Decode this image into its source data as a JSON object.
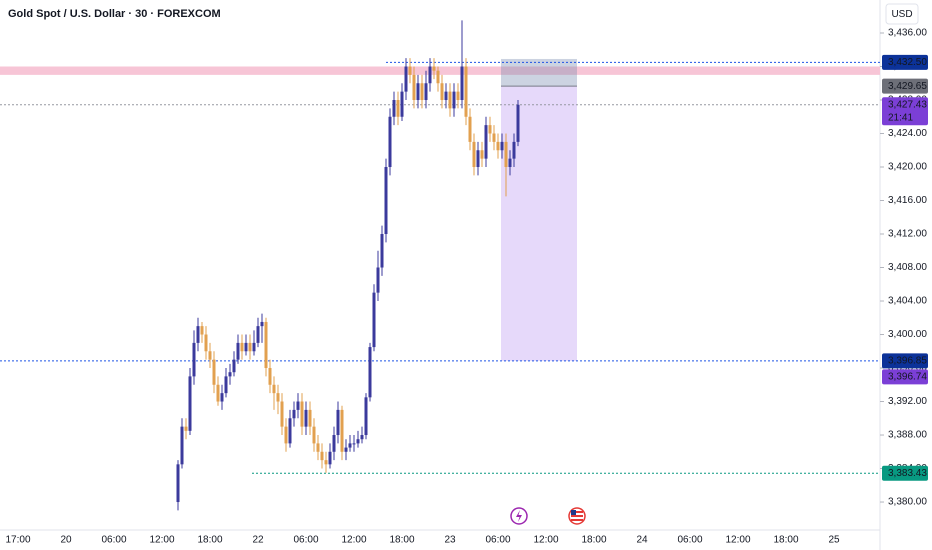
{
  "chart_data": {
    "type": "candlestick",
    "title": "Gold Spot / U.S. Dollar · 30 · FOREXCOM",
    "currency": "USD",
    "open": [
      3380,
      3384.5,
      3389,
      3388.5,
      3395,
      3399,
      3401,
      3400,
      3398,
      3397,
      3394,
      3392,
      3393,
      3395,
      3395.5,
      3397,
      3399,
      3398,
      3399,
      3398,
      3399,
      3401,
      3401.5,
      3396,
      3394,
      3393,
      3392,
      3389,
      3387,
      3390,
      3391,
      3392,
      3389,
      3391,
      3389,
      3387,
      3386,
      3385,
      3384.5,
      3386,
      3388,
      3391,
      3386,
      3386.5,
      3387,
      3387,
      3387.5,
      3388,
      3392.5,
      3398.5,
      3405,
      3408,
      3412,
      3420,
      3426,
      3428,
      3426,
      3429,
      3432,
      3431,
      3428,
      3430,
      3428,
      3430,
      3432,
      3431.5,
      3430,
      3428,
      3429,
      3427,
      3429,
      3428,
      3432,
      3426,
      3423,
      3420,
      3422,
      3421,
      3425,
      3424,
      3423,
      3422,
      3423,
      3420,
      3421,
      3423
    ],
    "high": [
      3385,
      3390,
      3390,
      3396,
      3400.5,
      3402,
      3401.5,
      3401,
      3399,
      3398,
      3395,
      3394,
      3396,
      3396.5,
      3398,
      3400,
      3400,
      3400,
      3400,
      3400.5,
      3402,
      3402.5,
      3402,
      3397,
      3395,
      3394,
      3393,
      3390,
      3391,
      3392,
      3393,
      3393,
      3392,
      3392,
      3390,
      3388,
      3387,
      3386,
      3387,
      3389,
      3392,
      3391.5,
      3387.5,
      3388,
      3388,
      3388.5,
      3389,
      3393,
      3399,
      3406,
      3410,
      3413,
      3421,
      3427,
      3429,
      3429,
      3430,
      3433,
      3433,
      3432,
      3431,
      3431,
      3431.5,
      3433,
      3433,
      3432,
      3431,
      3430,
      3430,
      3430,
      3430,
      3437.5,
      3433,
      3427,
      3424,
      3423,
      3423,
      3426,
      3426,
      3425,
      3424,
      3424,
      3424,
      3422,
      3424,
      3428
    ],
    "low": [
      3379,
      3384,
      3387.5,
      3388,
      3394,
      3398,
      3399,
      3397,
      3396,
      3393,
      3391.5,
      3391,
      3392.5,
      3394,
      3395,
      3396.5,
      3397,
      3397.5,
      3397,
      3397.5,
      3398.5,
      3399,
      3395,
      3393,
      3391,
      3390.5,
      3388,
      3386,
      3386.5,
      3389,
      3390,
      3388,
      3388,
      3388,
      3386,
      3385,
      3384,
      3383.5,
      3384,
      3385,
      3387,
      3385,
      3385,
      3386,
      3386,
      3386.5,
      3387,
      3387.5,
      3392,
      3398,
      3404,
      3407,
      3411,
      3419,
      3425,
      3425,
      3425.5,
      3428,
      3430,
      3427,
      3427,
      3427,
      3427,
      3429,
      3430.5,
      3429,
      3427,
      3427,
      3426,
      3426,
      3427,
      3427,
      3425,
      3422,
      3419,
      3419,
      3420,
      3420,
      3423,
      3422,
      3421,
      3421,
      3416.5,
      3419,
      3420,
      3422.5
    ],
    "close": [
      3384.5,
      3389,
      3388.5,
      3395,
      3399,
      3401,
      3400,
      3398,
      3397,
      3394,
      3392,
      3393,
      3395,
      3395.5,
      3397,
      3399,
      3398,
      3399,
      3398,
      3399,
      3401,
      3401.5,
      3396,
      3394,
      3393,
      3392,
      3389,
      3387,
      3390,
      3391,
      3392,
      3389,
      3391,
      3389,
      3387,
      3386,
      3385,
      3384.5,
      3386,
      3388,
      3391,
      3386,
      3386.5,
      3387,
      3387,
      3387.5,
      3388,
      3392.5,
      3398.5,
      3405,
      3408,
      3412,
      3420,
      3426,
      3428,
      3426,
      3429,
      3432,
      3431,
      3428,
      3430,
      3428,
      3430,
      3432,
      3431.5,
      3430,
      3428,
      3429,
      3427,
      3429,
      3428,
      3432,
      3426,
      3423,
      3420,
      3422,
      3421,
      3425,
      3424,
      3423,
      3422,
      3423,
      3420,
      3421,
      3423,
      3427.43
    ],
    "up_color": "#3b3a9c",
    "down_color": "#e2a04f",
    "ylim": [
      3376.66,
      3439.94
    ],
    "yticks": [
      {
        "value": 3380,
        "label": "3,380.00"
      },
      {
        "value": 3384,
        "label": "3,384.00"
      },
      {
        "value": 3388,
        "label": "3,388.00"
      },
      {
        "value": 3392,
        "label": "3,392.00"
      },
      {
        "value": 3396,
        "label": "3,396.00"
      },
      {
        "value": 3400,
        "label": "3,400.00"
      },
      {
        "value": 3404,
        "label": "3,404.00"
      },
      {
        "value": 3408,
        "label": "3,408.00"
      },
      {
        "value": 3412,
        "label": "3,412.00"
      },
      {
        "value": 3416,
        "label": "3,416.00"
      },
      {
        "value": 3420,
        "label": "3,420.00"
      },
      {
        "value": 3424,
        "label": "3,424.00"
      },
      {
        "value": 3428,
        "label": "3,428.00"
      },
      {
        "value": 3432,
        "label": "3,432.00"
      },
      {
        "value": 3436,
        "label": "3,436.00"
      }
    ],
    "xticks": [
      "17:00",
      "20",
      "06:00",
      "12:00",
      "18:00",
      "22",
      "06:00",
      "12:00",
      "18:00",
      "23",
      "06:00",
      "12:00",
      "18:00",
      "24",
      "06:00",
      "12:00",
      "18:00",
      "25"
    ],
    "levels": [
      {
        "value": 3432.5,
        "color": "#1e53e5"
      },
      {
        "value": 3396.85,
        "color": "#1e53e5"
      },
      {
        "value": 3383.43,
        "color": "#089981"
      },
      {
        "value": 3427.43,
        "color": "#9598a1"
      }
    ],
    "zone": [
      3431,
      3432
    ],
    "position": {
      "stop": 3432.9,
      "entry": 3429.65,
      "target": 3396.85
    },
    "price_tags": [
      {
        "value": 3432.5,
        "label": "3,432.50",
        "color": "#0c3299"
      },
      {
        "value": 3429.65,
        "label": "3,429.65",
        "color": "#6d6f78"
      },
      {
        "value": 3427.43,
        "label": "3,427.43",
        "color": "#7b3fd6"
      },
      {
        "value": 3396.85,
        "label": "3,396.85",
        "color": "#0c3299"
      },
      {
        "value": 3396.74,
        "label": "3,396.74",
        "color": "#7b3fd6"
      },
      {
        "value": 3383.43,
        "label": "3,383.43",
        "color": "#089981"
      }
    ],
    "countdown": "21:41"
  }
}
